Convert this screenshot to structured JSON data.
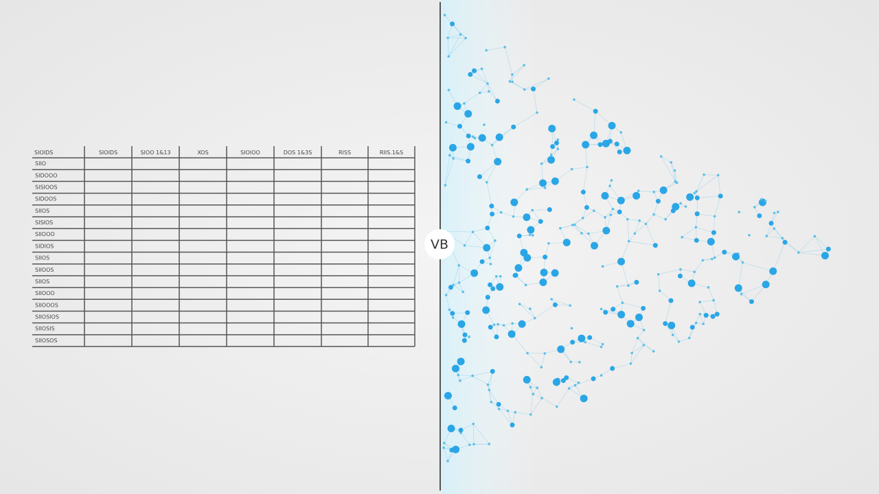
{
  "table": {
    "header": [
      "SIOIDS",
      "SIOIDS",
      "SIOO 1&13",
      "XOS",
      "SIOIOO",
      "DOS 1&3S",
      "RISS",
      "RIIS.1&S"
    ],
    "rows": [
      "SIIO",
      "SIDOOO",
      "SISIOOS",
      "SIDOOS",
      "SIIOS",
      "SISIOS",
      "SIIOOO",
      "SIDIOS",
      "SIIOS",
      "SIIOOS",
      "SIIOS",
      "SIIOOO",
      "SIIOOOS",
      "SIIOSIOS",
      "SIIOSIS",
      "SIIOSOS"
    ]
  },
  "badge": "VB"
}
